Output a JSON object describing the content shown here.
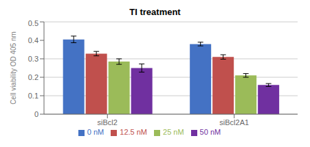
{
  "chart_data": {
    "type": "bar",
    "title": "TI treatment",
    "ylabel": "Cell viability OD 405 nm",
    "categories": [
      "siBcl2",
      "siBcl2A1"
    ],
    "series": [
      {
        "name": "0 nM",
        "color": "#4472C4",
        "values": [
          0.405,
          0.38
        ],
        "errors": [
          0.018,
          0.01
        ]
      },
      {
        "name": "12.5 nM",
        "color": "#C0504D",
        "values": [
          0.328,
          0.31
        ],
        "errors": [
          0.012,
          0.012
        ]
      },
      {
        "name": "25 nM",
        "color": "#9BBB59",
        "values": [
          0.285,
          0.21
        ],
        "errors": [
          0.015,
          0.01
        ]
      },
      {
        "name": "50 nM",
        "color": "#7030A0",
        "values": [
          0.25,
          0.158
        ],
        "errors": [
          0.022,
          0.008
        ]
      }
    ],
    "ylim": [
      0,
      0.5
    ],
    "yticks": [
      0,
      0.1,
      0.2,
      0.3,
      0.4,
      0.5
    ],
    "grid": true,
    "legend": "bottom"
  }
}
